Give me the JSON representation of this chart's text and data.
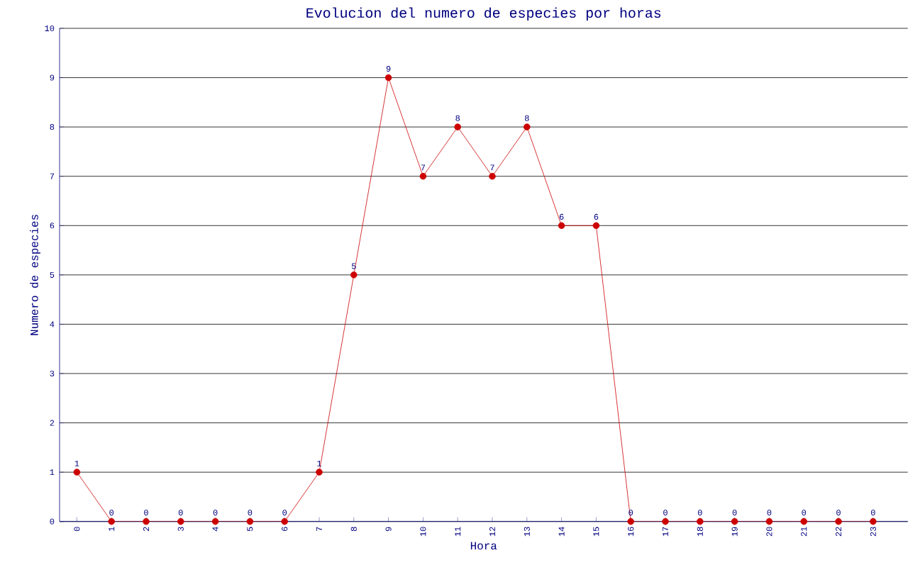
{
  "chart_data": {
    "type": "line",
    "title": "Evolucion del numero de especies por horas",
    "xlabel": "Hora",
    "ylabel": "Numero de especies",
    "x": [
      0,
      1,
      2,
      3,
      4,
      5,
      6,
      7,
      8,
      9,
      10,
      11,
      12,
      13,
      14,
      15,
      16,
      17,
      18,
      19,
      20,
      21,
      22,
      23
    ],
    "values": [
      1,
      0,
      0,
      0,
      0,
      0,
      0,
      1,
      5,
      9,
      7,
      8,
      7,
      8,
      6,
      6,
      0,
      0,
      0,
      0,
      0,
      0,
      0,
      0
    ],
    "color": "#cc0000",
    "xlim": [
      -0.5,
      24
    ],
    "xticks": [
      0,
      1,
      2,
      3,
      4,
      5,
      6,
      7,
      8,
      9,
      10,
      11,
      12,
      13,
      14,
      15,
      16,
      17,
      18,
      19,
      20,
      21,
      22,
      23
    ],
    "ylim": [
      0,
      10
    ],
    "yticks": [
      0,
      1,
      2,
      3,
      4,
      5,
      6,
      7,
      8,
      9,
      10
    ],
    "grid": "y",
    "marker": "circle",
    "line_style": "solid",
    "data_labels": true
  }
}
